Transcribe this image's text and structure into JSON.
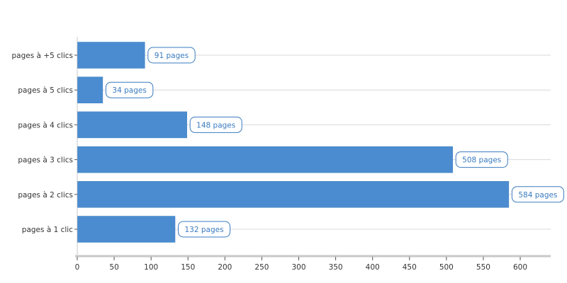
{
  "colors": {
    "bar": "#4a8ccf",
    "label_text": "#3a7bbf",
    "label_border": "#3a7bbf",
    "grid": "#d9d9d9",
    "axis": "#c8c8c8"
  },
  "chart_data": {
    "type": "bar",
    "orientation": "horizontal",
    "categories": [
      "pages à +5 clics",
      "pages à 5 clics",
      "pages à 4 clics",
      "pages à 3 clics",
      "pages à 2 clics",
      "pages à 1 clic"
    ],
    "values": [
      91,
      34,
      148,
      508,
      584,
      132
    ],
    "value_labels": [
      "91 pages",
      "34 pages",
      "148 pages",
      "508 pages",
      "584 pages",
      "132 pages"
    ],
    "x_ticks": [
      0,
      50,
      100,
      150,
      200,
      250,
      300,
      350,
      400,
      450,
      500,
      550,
      600
    ],
    "xlim": [
      0,
      640
    ],
    "grid": true,
    "title": "",
    "xlabel": "",
    "ylabel": ""
  }
}
